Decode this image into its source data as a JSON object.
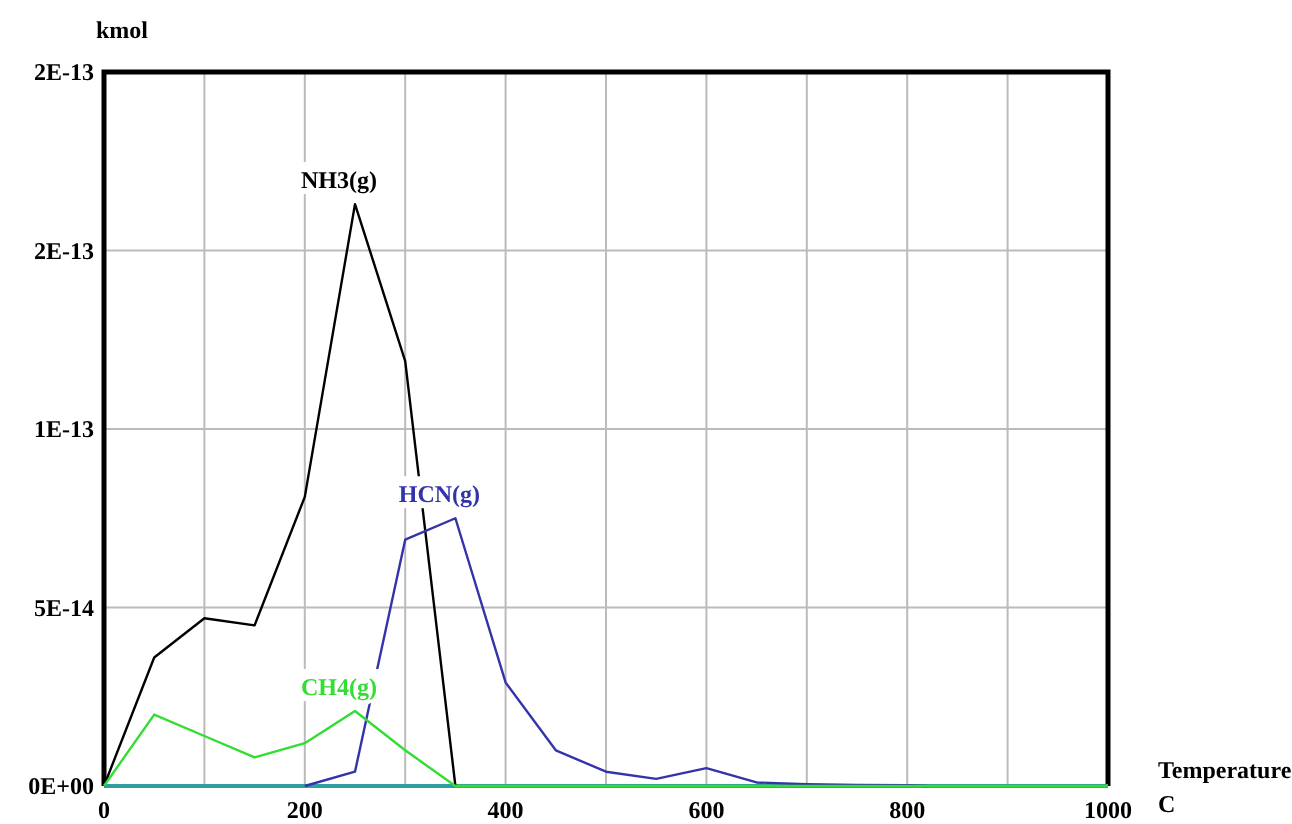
{
  "chart_data": {
    "type": "line",
    "xlabel": "Temperature C",
    "ylabel": "kmol",
    "xlim": [
      0,
      1000
    ],
    "ylim": [
      0,
      2e-13
    ],
    "xticks": [
      0,
      {
        "value": 100,
        "label": null
      },
      200,
      {
        "value": 300,
        "label": null
      },
      400,
      {
        "value": 500,
        "label": null
      },
      600,
      {
        "value": 700,
        "label": null
      },
      800,
      {
        "value": 900,
        "label": null
      },
      1000
    ],
    "yticks": [
      {
        "value": 0,
        "label": "0E+00"
      },
      {
        "value": 5e-14,
        "label": "5E-14"
      },
      {
        "value": 1e-13,
        "label": "1E-13"
      },
      {
        "value": 1.5e-13,
        "label": "2E-13"
      },
      {
        "value": 2e-13,
        "label": "2E-13"
      }
    ],
    "grid": true,
    "marker": "none",
    "line_style": "solid",
    "series": [
      {
        "name": "NH3(g)",
        "color": "#000000",
        "x": [
          0,
          50,
          100,
          150,
          200,
          250,
          300,
          350
        ],
        "values": [
          0,
          3.6e-14,
          4.7e-14,
          4.5e-14,
          8.1e-14,
          1.63e-13,
          1.19e-13,
          0
        ]
      },
      {
        "name": "HCN(g)",
        "color": "#3333aa",
        "x": [
          200,
          250,
          300,
          350,
          400,
          450,
          500,
          550,
          600,
          650,
          700,
          750,
          800,
          820
        ],
        "values": [
          0,
          4e-15,
          6.9e-14,
          7.5e-14,
          2.9e-14,
          1e-14,
          4e-15,
          2e-15,
          5e-15,
          1e-15,
          5e-16,
          3e-16,
          2e-16,
          0
        ]
      },
      {
        "name": "CH4(g)",
        "color": "#33dd33",
        "x": [
          0,
          50,
          100,
          150,
          200,
          250,
          300,
          350,
          1000
        ],
        "values": [
          0,
          2e-14,
          1.4e-14,
          8e-15,
          1.2e-14,
          2.1e-14,
          1e-14,
          0,
          0
        ]
      }
    ]
  }
}
